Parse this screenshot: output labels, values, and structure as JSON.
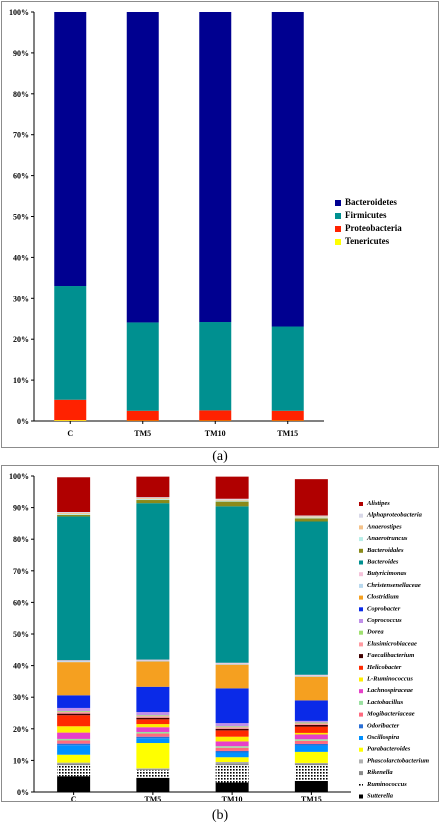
{
  "captions": {
    "a": "(a)",
    "b": "(b)"
  },
  "chart_data": [
    {
      "type": "bar",
      "stacked": true,
      "ylim": [
        0,
        100
      ],
      "y_ticks": [
        "0%",
        "10%",
        "20%",
        "30%",
        "40%",
        "50%",
        "60%",
        "70%",
        "80%",
        "90%",
        "100%"
      ],
      "categories": [
        "C",
        "TM5",
        "TM10",
        "TM15"
      ],
      "legend_position": "right",
      "grid": false,
      "series": [
        {
          "name": "Tenericutes",
          "color": "#ffff00",
          "values": [
            0.2,
            0.1,
            0.1,
            0.1
          ]
        },
        {
          "name": "Proteobacteria",
          "color": "#ff2200",
          "values": [
            5.0,
            2.4,
            2.5,
            2.4
          ]
        },
        {
          "name": "Firmicutes",
          "color": "#009090",
          "values": [
            27.8,
            21.6,
            21.6,
            20.6
          ]
        },
        {
          "name": "Bacteroidetes",
          "color": "#000090",
          "values": [
            67.0,
            75.9,
            75.8,
            76.9
          ]
        }
      ],
      "legend_order": [
        "Bacteroidetes",
        "Firmicutes",
        "Proteobacteria",
        "Tenericutes"
      ]
    },
    {
      "type": "bar",
      "stacked": true,
      "ylim": [
        0,
        100
      ],
      "y_ticks": [
        "0%",
        "10%",
        "20%",
        "30%",
        "40%",
        "50%",
        "60%",
        "70%",
        "80%",
        "90%",
        "100%"
      ],
      "categories": [
        "C",
        "TM5",
        "TM10",
        "TM15"
      ],
      "legend_position": "right",
      "grid": false,
      "series": [
        {
          "name": "Sutterella",
          "color": "#000000",
          "values": [
            5.0,
            4.5,
            3.0,
            3.5
          ]
        },
        {
          "name": "Ruminococcus",
          "color": "#000000",
          "hatch": true,
          "values": [
            3.5,
            2.5,
            5.5,
            5.0
          ]
        },
        {
          "name": "Rikenella",
          "color": "#8a8a8a",
          "values": [
            0.5,
            0.3,
            0.5,
            0.5
          ]
        },
        {
          "name": "Phascolarctobacterium",
          "color": "#b0b0b0",
          "values": [
            0.3,
            0.2,
            0.5,
            0.2
          ]
        },
        {
          "name": "Parabacteroides",
          "color": "#ffff00",
          "values": [
            2.5,
            8.0,
            1.5,
            3.5
          ]
        },
        {
          "name": "Oscillospira",
          "color": "#0090ff",
          "values": [
            3.0,
            1.5,
            1.5,
            2.0
          ]
        },
        {
          "name": "Odoribacter",
          "color": "#2a6fd6",
          "values": [
            0.5,
            0.5,
            0.5,
            0.5
          ]
        },
        {
          "name": "Mogibacteriaceae",
          "color": "#ff6a7f",
          "values": [
            1.0,
            1.0,
            1.0,
            1.0
          ]
        },
        {
          "name": "Lactobacillus",
          "color": "#9ae0a0",
          "values": [
            0.5,
            0.5,
            0.5,
            0.5
          ]
        },
        {
          "name": "Lachnospiraceae",
          "color": "#e640c8",
          "values": [
            2.0,
            1.5,
            1.5,
            1.5
          ]
        },
        {
          "name": "L-Ruminococcus",
          "color": "#ffee00",
          "values": [
            2.0,
            1.0,
            1.5,
            0.5
          ]
        },
        {
          "name": "Helicobacter",
          "color": "#ff2a00",
          "values": [
            3.5,
            1.5,
            2.0,
            2.0
          ]
        },
        {
          "name": "Faecalibacterium",
          "color": "#400000",
          "values": [
            0.5,
            0.5,
            0.5,
            0.5
          ]
        },
        {
          "name": "Elusimicrobiaceae",
          "color": "#ff9aa0",
          "values": [
            0.5,
            0.5,
            0.5,
            0.5
          ]
        },
        {
          "name": "Dorea",
          "color": "#a0e070",
          "values": [
            0.3,
            0.3,
            0.3,
            0.3
          ]
        },
        {
          "name": "Coprococcus",
          "color": "#c090e8",
          "values": [
            1.0,
            1.0,
            1.0,
            0.5
          ]
        },
        {
          "name": "Coprobacter",
          "color": "#0a2ae8",
          "values": [
            4.0,
            8.0,
            11.0,
            6.5
          ]
        },
        {
          "name": "Clostridium",
          "color": "#f5a020",
          "values": [
            10.5,
            8.0,
            7.5,
            7.5
          ]
        },
        {
          "name": "Christensenellaceae",
          "color": "#b8d8ee",
          "values": [
            0.3,
            0.3,
            0.3,
            0.3
          ]
        },
        {
          "name": "Butyricimonas",
          "color": "#f4c2da",
          "values": [
            0.3,
            0.3,
            0.3,
            0.3
          ]
        },
        {
          "name": "Bacteroides",
          "color": "#009090",
          "values": [
            45.5,
            49.5,
            49.5,
            48.5
          ]
        },
        {
          "name": "Bacteroidales",
          "color": "#8a8a1a",
          "values": [
            0.5,
            1.0,
            1.5,
            1.0
          ]
        },
        {
          "name": "Anaerotruncus",
          "color": "#b8eee8",
          "values": [
            0.3,
            0.3,
            0.3,
            0.3
          ]
        },
        {
          "name": "Anaerostipes",
          "color": "#f4c28a",
          "values": [
            0.3,
            0.3,
            0.3,
            0.3
          ]
        },
        {
          "name": "Alphaproteobacteria",
          "color": "#d8d8e8",
          "values": [
            0.3,
            0.3,
            0.3,
            0.3
          ]
        },
        {
          "name": "Alistipes",
          "color": "#b00000",
          "values": [
            11.0,
            6.5,
            7.0,
            11.5
          ]
        }
      ],
      "legend_order": [
        "Alistipes",
        "Alphaproteobacteria",
        "Anaerostipes",
        "Anaerotruncus",
        "Bacteroidales",
        "Bacteroides",
        "Butyricimonas",
        "Christensenellaceae",
        "Clostridium",
        "Coprobacter",
        "Coprococcus",
        "Dorea",
        "Elusimicrobiaceae",
        "Faecalibacterium",
        "Helicobacter",
        "L-Ruminococcus",
        "Lachnospiraceae",
        "Lactobacillus",
        "Mogibacteriaceae",
        "Odoribacter",
        "Oscillospira",
        "Parabacteroides",
        "Phascolarctobacterium",
        "Rikenella",
        "Ruminococcus",
        "Sutterella"
      ]
    }
  ]
}
